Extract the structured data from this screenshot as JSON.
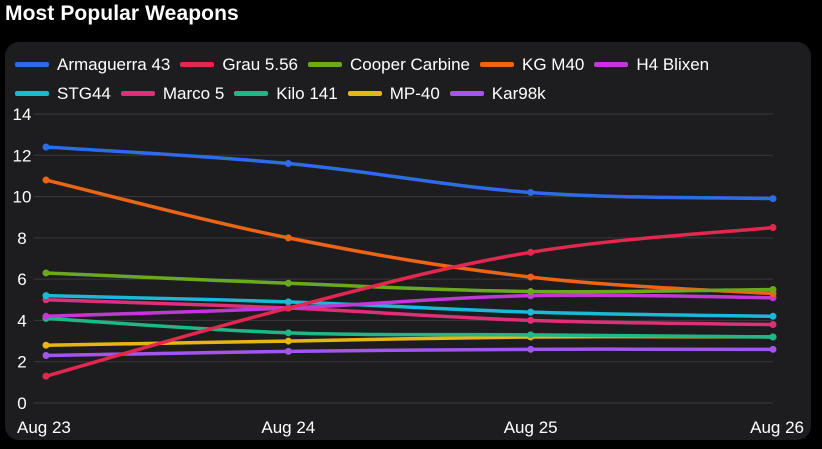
{
  "header": {
    "title": "Most Popular Weapons"
  },
  "chart_data": {
    "type": "line",
    "title": "Most Popular Weapons",
    "xlabel": "",
    "ylabel": "",
    "categories": [
      "Aug 23",
      "Aug 24",
      "Aug 25",
      "Aug 26"
    ],
    "ylim": [
      0,
      14
    ],
    "yticks": [
      0,
      2,
      4,
      6,
      8,
      10,
      12,
      14
    ],
    "grid": true,
    "legend_position": "top-left",
    "series": [
      {
        "name": "Armaguerra 43",
        "color": "#2e6be6",
        "values": [
          12.4,
          11.6,
          10.2,
          9.9
        ]
      },
      {
        "name": "Grau 5.56",
        "color": "#e3284f",
        "values": [
          1.3,
          4.6,
          7.3,
          8.5
        ]
      },
      {
        "name": "Cooper Carbine",
        "color": "#6aa91f",
        "values": [
          6.3,
          5.8,
          5.4,
          5.5
        ]
      },
      {
        "name": "KG M40",
        "color": "#ec6418",
        "values": [
          10.8,
          8.0,
          6.1,
          5.3
        ]
      },
      {
        "name": "H4 Blixen",
        "color": "#c238d6",
        "values": [
          4.2,
          4.6,
          5.2,
          5.1
        ]
      },
      {
        "name": "STG44",
        "color": "#1bb8d8",
        "values": [
          5.2,
          4.9,
          4.4,
          4.2
        ]
      },
      {
        "name": "Marco 5",
        "color": "#de2f79",
        "values": [
          5.0,
          4.6,
          4.0,
          3.8
        ]
      },
      {
        "name": "Kilo 141",
        "color": "#1eb887",
        "values": [
          4.1,
          3.4,
          3.3,
          3.2
        ]
      },
      {
        "name": "MP-40",
        "color": "#e8b514",
        "values": [
          2.8,
          3.0,
          3.2,
          3.2
        ]
      },
      {
        "name": "Kar98k",
        "color": "#a455ee",
        "values": [
          2.3,
          2.5,
          2.6,
          2.6
        ]
      }
    ]
  }
}
